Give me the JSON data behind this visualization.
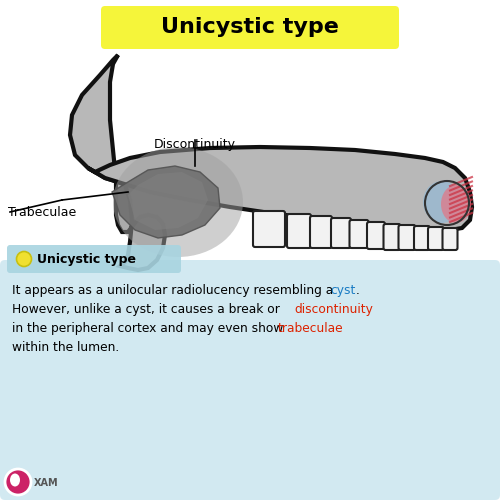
{
  "title": "Unicystic type",
  "title_bg": "#f5f53a",
  "bg_white": "#ffffff",
  "bg_blue_bottom": "#b8dce8",
  "bg_blue_mid": "#cce8f0",
  "jaw_fill": "#b8b8b8",
  "jaw_edge": "#111111",
  "jaw_lw": 3.0,
  "lesion_outer_fill": "#808080",
  "lesion_inner_fill": "#909090",
  "tooth_fill": "#f2f2f2",
  "tooth_edge": "#222222",
  "cyst_blue": "#9ab8d0",
  "cyst_pink": "#d88090",
  "cyst_stripe": "#cc3344",
  "label_trabeculae": "Trabeculae",
  "label_discontinuity": "Discontinuity",
  "legend_label": "Unicystic type",
  "legend_bg": "#a8d4e0",
  "legend_dot_fill": "#f0e030",
  "legend_dot_edge": "#c8c010",
  "text_black": "#111111",
  "text_blue": "#1a7cc4",
  "text_red": "#dd2200",
  "logo_outer": "#cc2266",
  "logo_inner": "#ffffff"
}
